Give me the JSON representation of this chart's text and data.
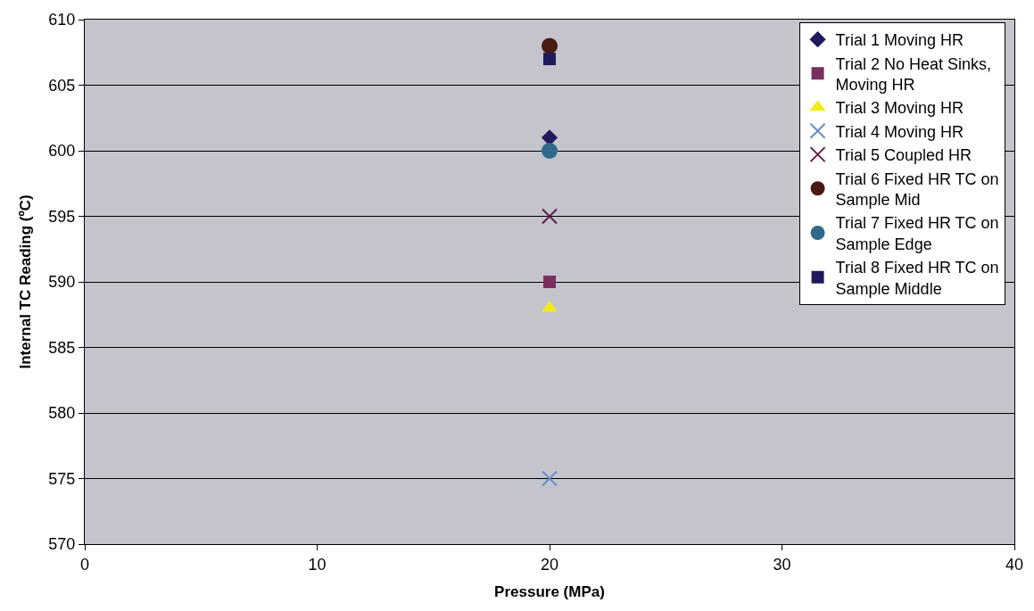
{
  "chart_data": {
    "type": "scatter",
    "xlabel": "Pressure (MPa)",
    "ylabel": "Internal TC Reading (ºC)",
    "xlim": [
      0,
      40
    ],
    "xticks": [
      0,
      10,
      20,
      30,
      40
    ],
    "ylim": [
      570,
      610
    ],
    "yticks": [
      570,
      575,
      580,
      585,
      590,
      595,
      600,
      605,
      610
    ],
    "grid": "y",
    "legend": "top right",
    "x": [
      20
    ],
    "series": [
      {
        "name": "Trial 1 Moving HR",
        "color": "#1f1a5c",
        "marker": "diamond",
        "values": [
          601
        ]
      },
      {
        "name": "Trial 2 No Heat Sinks, Moving HR",
        "color": "#7b2f5e",
        "marker": "square",
        "values": [
          590
        ]
      },
      {
        "name": "Trial 3 Moving HR",
        "color": "#f0ec1a",
        "marker": "triangle",
        "values": [
          588
        ]
      },
      {
        "name": "Trial 4 Moving HR",
        "color": "#6a8fc8",
        "marker": "cross",
        "values": [
          575
        ]
      },
      {
        "name": "Trial 5 Coupled HR",
        "color": "#5c1f4a",
        "marker": "cross",
        "values": [
          595
        ]
      },
      {
        "name": "Trial 6 Fixed HR TC on Sample Mid",
        "color": "#4a1a14",
        "marker": "circle",
        "values": [
          608
        ]
      },
      {
        "name": "Trial 7 Fixed HR TC on Sample Edge",
        "color": "#2f6a8a",
        "marker": "circle",
        "values": [
          600
        ]
      },
      {
        "name": "Trial 8 Fixed HR TC on Sample Middle",
        "color": "#1f1a5c",
        "marker": "square",
        "values": [
          607
        ]
      }
    ]
  }
}
